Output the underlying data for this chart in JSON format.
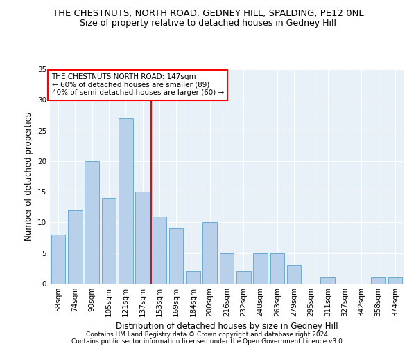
{
  "title": "THE CHESTNUTS, NORTH ROAD, GEDNEY HILL, SPALDING, PE12 0NL",
  "subtitle": "Size of property relative to detached houses in Gedney Hill",
  "xlabel": "Distribution of detached houses by size in Gedney Hill",
  "ylabel": "Number of detached properties",
  "categories": [
    "58sqm",
    "74sqm",
    "90sqm",
    "105sqm",
    "121sqm",
    "137sqm",
    "153sqm",
    "169sqm",
    "184sqm",
    "200sqm",
    "216sqm",
    "232sqm",
    "248sqm",
    "263sqm",
    "279sqm",
    "295sqm",
    "311sqm",
    "327sqm",
    "342sqm",
    "358sqm",
    "374sqm"
  ],
  "values": [
    8,
    12,
    20,
    14,
    27,
    15,
    11,
    9,
    2,
    10,
    5,
    2,
    5,
    5,
    3,
    0,
    1,
    0,
    0,
    1,
    1
  ],
  "bar_color": "#b8d0ea",
  "bar_edge_color": "#6aaad4",
  "redline_x": 5.5,
  "annotation_title": "THE CHESTNUTS NORTH ROAD: 147sqm",
  "annotation_line1": "← 60% of detached houses are smaller (89)",
  "annotation_line2": "40% of semi-detached houses are larger (60) →",
  "ylim": [
    0,
    35
  ],
  "yticks": [
    0,
    5,
    10,
    15,
    20,
    25,
    30,
    35
  ],
  "footer1": "Contains HM Land Registry data © Crown copyright and database right 2024.",
  "footer2": "Contains public sector information licensed under the Open Government Licence v3.0.",
  "bg_color": "#e8f0f8",
  "grid_color": "#ffffff",
  "title_fontsize": 9.5,
  "subtitle_fontsize": 9,
  "label_fontsize": 8.5,
  "tick_fontsize": 7.5,
  "annotation_fontsize": 7.5,
  "footer_fontsize": 6.5
}
